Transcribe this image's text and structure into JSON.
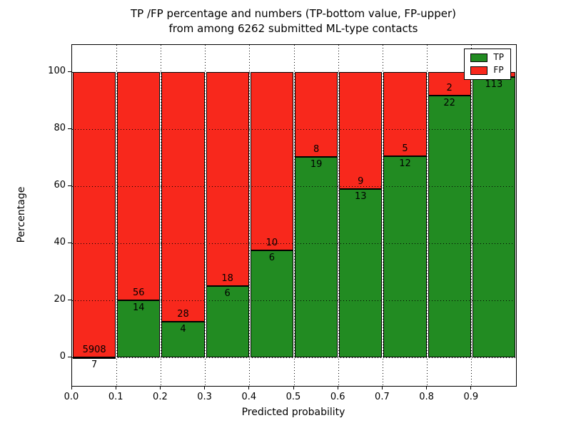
{
  "title": {
    "line1": "TP /FP percentage and numbers (TP-bottom value, FP-upper)",
    "line2": "from among 6262 submitted ML-type contacts"
  },
  "chart_data": {
    "type": "bar",
    "stacked": true,
    "normalized_to_percent": true,
    "bin_edges": [
      0.0,
      0.1,
      0.2,
      0.3,
      0.4,
      0.5,
      0.6,
      0.7,
      0.8,
      0.9,
      1.0
    ],
    "categories": [
      "0.0-0.1",
      "0.1-0.2",
      "0.2-0.3",
      "0.3-0.4",
      "0.4-0.5",
      "0.5-0.6",
      "0.6-0.7",
      "0.7-0.8",
      "0.8-0.9",
      "0.9-1.0"
    ],
    "series": [
      {
        "name": "TP",
        "color": "#228b22",
        "counts": [
          7,
          14,
          4,
          6,
          6,
          19,
          13,
          12,
          22,
          113
        ]
      },
      {
        "name": "FP",
        "color": "#f8281c",
        "counts": [
          5908,
          56,
          28,
          18,
          10,
          8,
          9,
          5,
          2,
          2
        ]
      }
    ],
    "tp_percent": [
      0.12,
      20.0,
      12.5,
      25.0,
      37.5,
      70.4,
      59.1,
      70.6,
      91.7,
      98.3
    ],
    "total_contacts": 6262,
    "xlabel": "Predicted probability",
    "ylabel": "Percentage",
    "xlim": [
      0.0,
      1.0
    ],
    "ylim": [
      -10,
      110
    ],
    "xticks": [
      "0.0",
      "0.1",
      "0.2",
      "0.3",
      "0.4",
      "0.5",
      "0.6",
      "0.7",
      "0.8",
      "0.9"
    ],
    "yticks": [
      "0",
      "20",
      "40",
      "60",
      "80",
      "100"
    ],
    "grid": "dotted",
    "legend": {
      "position": "upper right",
      "entries": [
        {
          "label": "TP",
          "color": "#228b22"
        },
        {
          "label": "FP",
          "color": "#f8281c"
        }
      ]
    }
  }
}
